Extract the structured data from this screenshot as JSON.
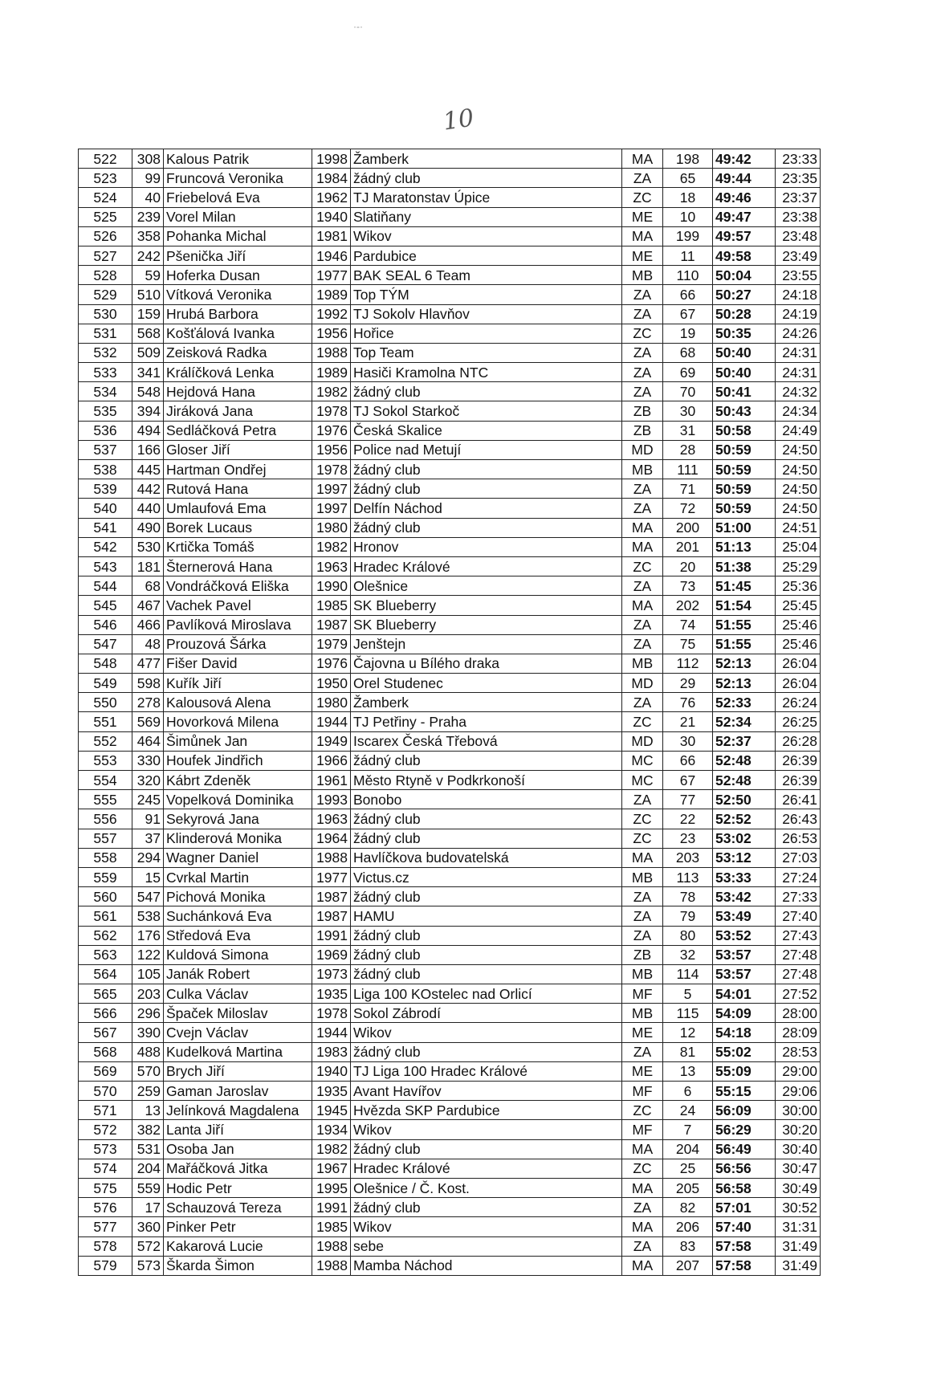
{
  "page_number": "10",
  "results": [
    [
      "522",
      "308",
      "Kalous Patrik",
      "1998",
      "Žamberk",
      "MA",
      "198",
      "49:42",
      "23:33"
    ],
    [
      "523",
      "99",
      "Fruncová Veronika",
      "1984",
      "žádný club",
      "ZA",
      "65",
      "49:44",
      "23:35"
    ],
    [
      "524",
      "40",
      "Friebelová Eva",
      "1962",
      "TJ Maratonstav Úpice",
      "ZC",
      "18",
      "49:46",
      "23:37"
    ],
    [
      "525",
      "239",
      "Vorel Milan",
      "1940",
      "Slatiňany",
      "ME",
      "10",
      "49:47",
      "23:38"
    ],
    [
      "526",
      "358",
      "Pohanka Michal",
      "1981",
      "Wikov",
      "MA",
      "199",
      "49:57",
      "23:48"
    ],
    [
      "527",
      "242",
      "Pšenička Jiří",
      "1946",
      "Pardubice",
      "ME",
      "11",
      "49:58",
      "23:49"
    ],
    [
      "528",
      "59",
      "Hoferka Dusan",
      "1977",
      "BAK SEAL 6 Team",
      "MB",
      "110",
      "50:04",
      "23:55"
    ],
    [
      "529",
      "510",
      "Vítková Veronika",
      "1989",
      "Top TÝM",
      "ZA",
      "66",
      "50:27",
      "24:18"
    ],
    [
      "530",
      "159",
      "Hrubá Barbora",
      "1992",
      "TJ Sokolv Hlavňov",
      "ZA",
      "67",
      "50:28",
      "24:19"
    ],
    [
      "531",
      "568",
      "Košťálová Ivanka",
      "1956",
      "Hořice",
      "ZC",
      "19",
      "50:35",
      "24:26"
    ],
    [
      "532",
      "509",
      "Zeisková Radka",
      "1988",
      "Top Team",
      "ZA",
      "68",
      "50:40",
      "24:31"
    ],
    [
      "533",
      "341",
      "Králíčková Lenka",
      "1989",
      "Hasiči Kramolna NTC",
      "ZA",
      "69",
      "50:40",
      "24:31"
    ],
    [
      "534",
      "548",
      "Hejdová Hana",
      "1982",
      "žádný club",
      "ZA",
      "70",
      "50:41",
      "24:32"
    ],
    [
      "535",
      "394",
      "Jiráková Jana",
      "1978",
      "TJ Sokol Starkoč",
      "ZB",
      "30",
      "50:43",
      "24:34"
    ],
    [
      "536",
      "494",
      "Sedláčková Petra",
      "1976",
      "Česká Skalice",
      "ZB",
      "31",
      "50:58",
      "24:49"
    ],
    [
      "537",
      "166",
      "Gloser Jiří",
      "1956",
      "Police nad Metují",
      "MD",
      "28",
      "50:59",
      "24:50"
    ],
    [
      "538",
      "445",
      "Hartman Ondřej",
      "1978",
      "žádný club",
      "MB",
      "111",
      "50:59",
      "24:50"
    ],
    [
      "539",
      "442",
      "Rutová Hana",
      "1997",
      "žádný club",
      "ZA",
      "71",
      "50:59",
      "24:50"
    ],
    [
      "540",
      "440",
      "Umlaufová Ema",
      "1997",
      "Delfín Náchod",
      "ZA",
      "72",
      "50:59",
      "24:50"
    ],
    [
      "541",
      "490",
      "Borek Lucaus",
      "1980",
      "žádný club",
      "MA",
      "200",
      "51:00",
      "24:51"
    ],
    [
      "542",
      "530",
      "Krtička Tomáš",
      "1982",
      "Hronov",
      "MA",
      "201",
      "51:13",
      "25:04"
    ],
    [
      "543",
      "181",
      "Šternerová Hana",
      "1963",
      "Hradec Králové",
      "ZC",
      "20",
      "51:38",
      "25:29"
    ],
    [
      "544",
      "68",
      "Vondráčková Eliška",
      "1990",
      "Olešnice",
      "ZA",
      "73",
      "51:45",
      "25:36"
    ],
    [
      "545",
      "467",
      "Vachek Pavel",
      "1985",
      "SK Blueberry",
      "MA",
      "202",
      "51:54",
      "25:45"
    ],
    [
      "546",
      "466",
      "Pavlíková Miroslava",
      "1987",
      "SK Blueberry",
      "ZA",
      "74",
      "51:55",
      "25:46"
    ],
    [
      "547",
      "48",
      "Prouzová Šárka",
      "1979",
      "Jenštejn",
      "ZA",
      "75",
      "51:55",
      "25:46"
    ],
    [
      "548",
      "477",
      "Fišer David",
      "1976",
      "Čajovna u Bílého draka",
      "MB",
      "112",
      "52:13",
      "26:04"
    ],
    [
      "549",
      "598",
      "Kuřík Jiří",
      "1950",
      "Orel Studenec",
      "MD",
      "29",
      "52:13",
      "26:04"
    ],
    [
      "550",
      "278",
      "Kalousová Alena",
      "1980",
      "Žamberk",
      "ZA",
      "76",
      "52:33",
      "26:24"
    ],
    [
      "551",
      "569",
      "Hovorková Milena",
      "1944",
      "TJ Petřiny - Praha",
      "ZC",
      "21",
      "52:34",
      "26:25"
    ],
    [
      "552",
      "464",
      "Šimůnek Jan",
      "1949",
      "Iscarex Česká Třebová",
      "MD",
      "30",
      "52:37",
      "26:28"
    ],
    [
      "553",
      "330",
      "Houfek Jindřich",
      "1966",
      "žádný club",
      "MC",
      "66",
      "52:48",
      "26:39"
    ],
    [
      "554",
      "320",
      "Kábrt Zdeněk",
      "1961",
      "Město Rtyně v Podkrkonoší",
      "MC",
      "67",
      "52:48",
      "26:39"
    ],
    [
      "555",
      "245",
      "Vopelková Dominika",
      "1993",
      "Bonobo",
      "ZA",
      "77",
      "52:50",
      "26:41"
    ],
    [
      "556",
      "91",
      "Sekyrová Jana",
      "1963",
      "žádný club",
      "ZC",
      "22",
      "52:52",
      "26:43"
    ],
    [
      "557",
      "37",
      "Klinderová Monika",
      "1964",
      "žádný club",
      "ZC",
      "23",
      "53:02",
      "26:53"
    ],
    [
      "558",
      "294",
      "Wagner Daniel",
      "1988",
      "Havlíčkova budovatelská",
      "MA",
      "203",
      "53:12",
      "27:03"
    ],
    [
      "559",
      "15",
      "Cvrkal Martin",
      "1977",
      "Victus.cz",
      "MB",
      "113",
      "53:33",
      "27:24"
    ],
    [
      "560",
      "547",
      "Pichová Monika",
      "1987",
      "žádný club",
      "ZA",
      "78",
      "53:42",
      "27:33"
    ],
    [
      "561",
      "538",
      "Suchánková Eva",
      "1987",
      "HAMU",
      "ZA",
      "79",
      "53:49",
      "27:40"
    ],
    [
      "562",
      "176",
      "Středová Eva",
      "1991",
      "žádný club",
      "ZA",
      "80",
      "53:52",
      "27:43"
    ],
    [
      "563",
      "122",
      "Kuldová Simona",
      "1969",
      "žádný club",
      "ZB",
      "32",
      "53:57",
      "27:48"
    ],
    [
      "564",
      "105",
      "Janák Robert",
      "1973",
      "žádný club",
      "MB",
      "114",
      "53:57",
      "27:48"
    ],
    [
      "565",
      "203",
      "Culka Václav",
      "1935",
      "Liga  100 KOstelec nad Orlicí",
      "MF",
      "5",
      "54:01",
      "27:52"
    ],
    [
      "566",
      "296",
      "Špaček Miloslav",
      "1978",
      "Sokol Zábrodí",
      "MB",
      "115",
      "54:09",
      "28:00"
    ],
    [
      "567",
      "390",
      "Cvejn Václav",
      "1944",
      "Wikov",
      "ME",
      "12",
      "54:18",
      "28:09"
    ],
    [
      "568",
      "488",
      "Kudelková Martina",
      "1983",
      "žádný club",
      "ZA",
      "81",
      "55:02",
      "28:53"
    ],
    [
      "569",
      "570",
      "Brych Jiří",
      "1940",
      "TJ Liga 100 Hradec Králové",
      "ME",
      "13",
      "55:09",
      "29:00"
    ],
    [
      "570",
      "259",
      "Gaman Jaroslav",
      "1935",
      "Avant Havířov",
      "MF",
      "6",
      "55:15",
      "29:06"
    ],
    [
      "571",
      "13",
      "Jelínková Magdalena",
      "1945",
      "Hvězda SKP Pardubice",
      "ZC",
      "24",
      "56:09",
      "30:00"
    ],
    [
      "572",
      "382",
      "Lanta Jiří",
      "1934",
      "Wikov",
      "MF",
      "7",
      "56:29",
      "30:20"
    ],
    [
      "573",
      "531",
      "Osoba Jan",
      "1982",
      "žádný club",
      "MA",
      "204",
      "56:49",
      "30:40"
    ],
    [
      "574",
      "204",
      "Mařáčková Jitka",
      "1967",
      "Hradec Králové",
      "ZC",
      "25",
      "56:56",
      "30:47"
    ],
    [
      "575",
      "559",
      "Hodic Petr",
      "1995",
      "Olešnice / Č. Kost.",
      "MA",
      "205",
      "56:58",
      "30:49"
    ],
    [
      "576",
      "17",
      "Schauzová Tereza",
      "1991",
      "žádný club",
      "ZA",
      "82",
      "57:01",
      "30:52"
    ],
    [
      "577",
      "360",
      "Pinker Petr",
      "1985",
      "Wikov",
      "MA",
      "206",
      "57:40",
      "31:31"
    ],
    [
      "578",
      "572",
      "Kakarová Lucie",
      "1988",
      "sebe",
      "ZA",
      "83",
      "57:58",
      "31:49"
    ],
    [
      "579",
      "573",
      "Škarda Šimon",
      "1988",
      "Mamba Náchod",
      "MA",
      "207",
      "57:58",
      "31:49"
    ]
  ]
}
